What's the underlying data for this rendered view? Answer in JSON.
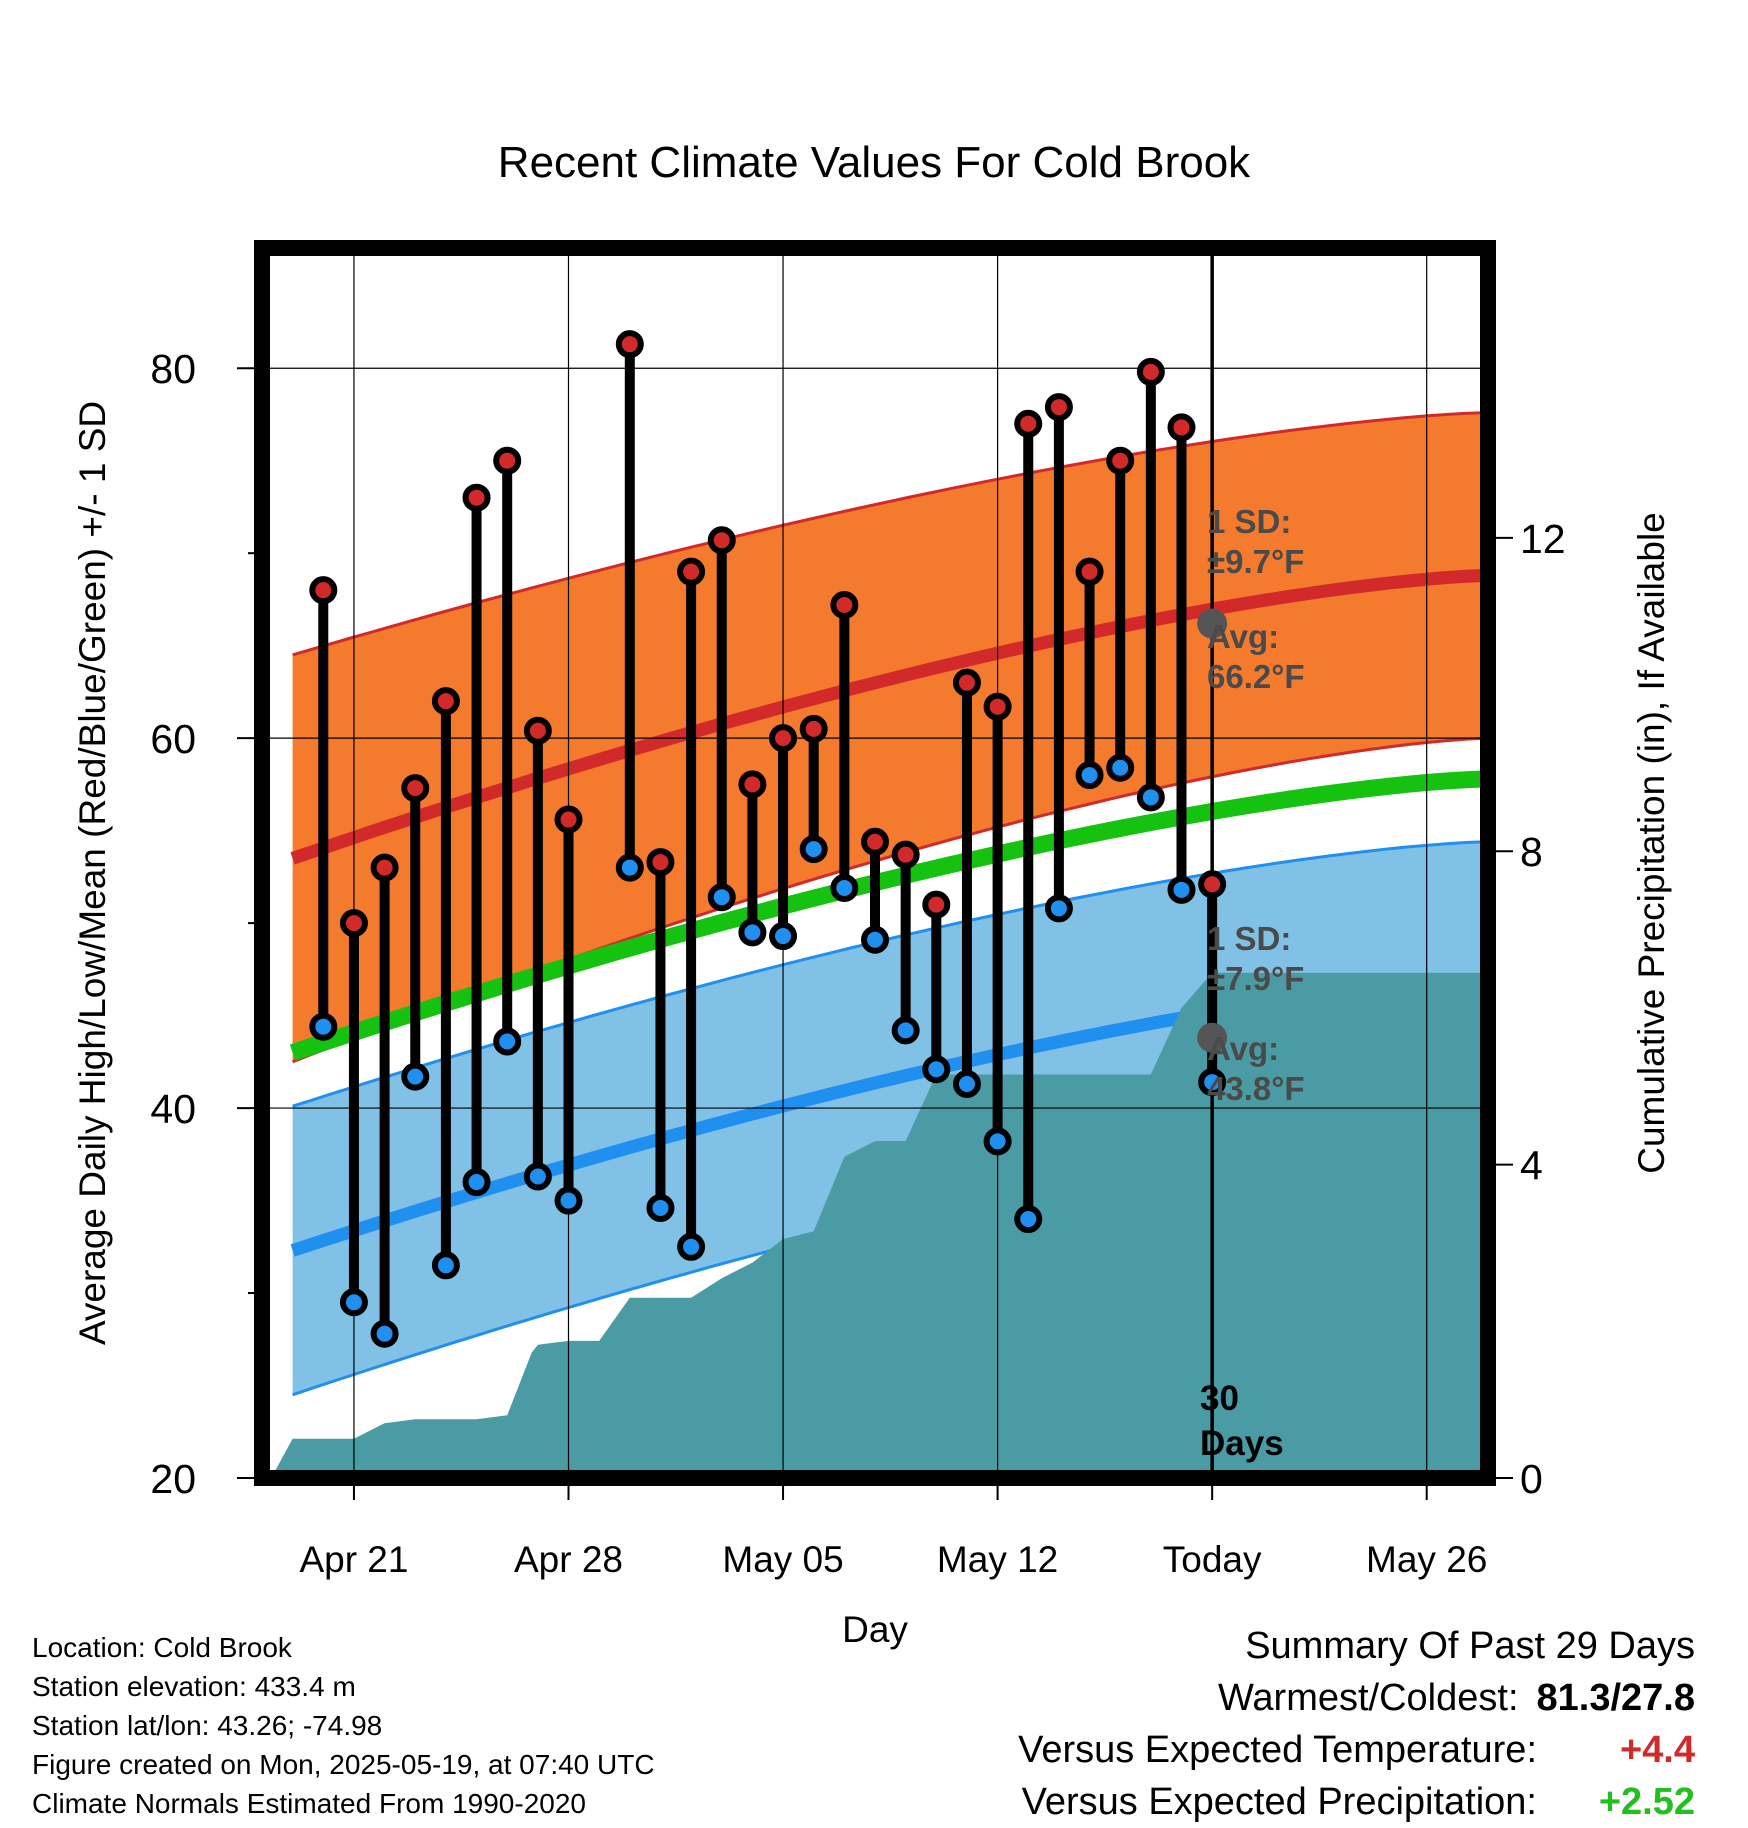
{
  "title": "Recent Climate Values For Cold Brook",
  "axes": {
    "xlabel": "Day",
    "ylabel_left": "Average Daily High/Low/Mean (Red/Blue/Green) +/- 1 SD",
    "ylabel_right": "Cumulative Precipitation (in), If Available"
  },
  "annotations": {
    "high_sd": [
      "1 SD:",
      "±9.7°F"
    ],
    "high_avg": [
      "Avg:",
      "66.2°F"
    ],
    "low_sd": [
      "1 SD:",
      "±7.9°F"
    ],
    "low_avg": [
      "Avg:",
      "43.8°F"
    ],
    "days": [
      "30",
      "Days"
    ]
  },
  "footer": {
    "location": "Location: Cold Brook",
    "elevation": "Station elevation: 433.4 m",
    "latlon": "Station lat/lon: 43.26; -74.98",
    "created": "Figure created on Mon, 2025-05-19, at 07:40 UTC",
    "normals": "Climate Normals Estimated From 1990-2020"
  },
  "summary": {
    "heading": "Summary Of Past 29 Days",
    "warmcold_label": "Warmest/Coldest:",
    "warmcold_value": "81.3/27.8",
    "temp_label": "Versus Expected Temperature:",
    "temp_value": "+4.4",
    "prcp_label": "Versus Expected Precipitation:",
    "prcp_value": "+2.52"
  },
  "colors": {
    "high_band": "#f47a2e",
    "high_line": "#d22a2a",
    "low_band": "#82c1e6",
    "low_line": "#1f8ff0",
    "mean_line": "#15c20f",
    "precip": "#4a9ba3",
    "high_dot": "#d22a2a",
    "low_dot": "#1f8ff0",
    "today_marker": "#555555"
  },
  "chart_data": {
    "type": "line",
    "x_range_days": [
      -31,
      9
    ],
    "xticks": [
      {
        "day": -28,
        "label": "Apr 21"
      },
      {
        "day": -21,
        "label": "Apr 28"
      },
      {
        "day": -14,
        "label": "May 05"
      },
      {
        "day": -7,
        "label": "May 12"
      },
      {
        "day": 0,
        "label": "Today"
      },
      {
        "day": 7,
        "label": "May 26"
      }
    ],
    "ylim_temp": [
      20,
      86.5
    ],
    "yticks_temp": [
      20,
      40,
      60,
      80
    ],
    "ylim_precip": [
      0,
      15.7
    ],
    "yticks_precip": [
      0,
      4,
      8,
      12
    ],
    "normals": {
      "x": [
        -30,
        9
      ],
      "high_mean": [
        53.5,
        68.8
      ],
      "high_sd": [
        11.0,
        8.8
      ],
      "mean": [
        43.0,
        57.8
      ],
      "low_mean": [
        32.3,
        46.9
      ],
      "low_sd": [
        7.8,
        7.5
      ]
    },
    "today_high_avg": 66.2,
    "today_low_avg": 43.8,
    "observations": [
      {
        "day": -29,
        "high": 68.0,
        "low": 44.4
      },
      {
        "day": -28,
        "high": 50.0,
        "low": 29.5
      },
      {
        "day": -27,
        "high": 53.0,
        "low": 27.8
      },
      {
        "day": -26,
        "high": 57.3,
        "low": 41.7
      },
      {
        "day": -25,
        "high": 62.0,
        "low": 31.5
      },
      {
        "day": -24,
        "high": 73.0,
        "low": 36.0
      },
      {
        "day": -23,
        "high": 75.0,
        "low": 43.6
      },
      {
        "day": -22,
        "high": 60.4,
        "low": 36.3
      },
      {
        "day": -21,
        "high": 55.6,
        "low": 35.0
      },
      {
        "day": -19,
        "high": 81.3,
        "low": 53.0
      },
      {
        "day": -18,
        "high": 53.3,
        "low": 34.6
      },
      {
        "day": -17,
        "high": 69.0,
        "low": 32.5
      },
      {
        "day": -16,
        "high": 70.7,
        "low": 51.4
      },
      {
        "day": -15,
        "high": 57.5,
        "low": 49.5
      },
      {
        "day": -14,
        "high": 60.0,
        "low": 49.3
      },
      {
        "day": -13,
        "high": 60.5,
        "low": 54.0
      },
      {
        "day": -12,
        "high": 67.2,
        "low": 51.9
      },
      {
        "day": -11,
        "high": 54.4,
        "low": 49.1
      },
      {
        "day": -10,
        "high": 53.7,
        "low": 44.2
      },
      {
        "day": -9,
        "high": 51.0,
        "low": 42.1
      },
      {
        "day": -8,
        "high": 63.0,
        "low": 41.3
      },
      {
        "day": -7,
        "high": 61.7,
        "low": 38.2
      },
      {
        "day": -6,
        "high": 77.0,
        "low": 34.0
      },
      {
        "day": -5,
        "high": 77.9,
        "low": 50.8
      },
      {
        "day": -4,
        "high": 69.0,
        "low": 58.0
      },
      {
        "day": -3,
        "high": 75.0,
        "low": 58.4
      },
      {
        "day": -2,
        "high": 79.8,
        "low": 56.8
      },
      {
        "day": -1,
        "high": 76.8,
        "low": 51.8
      },
      {
        "day": 0,
        "high": 52.1,
        "low": 41.4
      }
    ],
    "precip_cumulative": {
      "x": [
        -30.7,
        -30.0,
        -29.0,
        -28.0,
        -27.0,
        -26.0,
        -25.0,
        -24.0,
        -23.0,
        -22.2,
        -22.0,
        -21.0,
        -20.0,
        -19.0,
        -18.0,
        -17.0,
        -16.0,
        -15.0,
        -14.0,
        -13.0,
        -12.0,
        -11.0,
        -10.0,
        -9.0,
        -8.0,
        -7.0,
        -6.0,
        -5.0,
        -4.0,
        -3.0,
        -2.0,
        -1.0,
        0.0,
        9.0
      ],
      "y": [
        0,
        0.5,
        0.5,
        0.5,
        0.7,
        0.75,
        0.75,
        0.75,
        0.8,
        1.6,
        1.7,
        1.75,
        1.75,
        2.3,
        2.3,
        2.3,
        2.55,
        2.75,
        3.05,
        3.15,
        4.1,
        4.3,
        4.3,
        5.15,
        5.15,
        5.15,
        5.15,
        5.15,
        5.15,
        5.15,
        5.15,
        6.0,
        6.45,
        6.45
      ]
    }
  }
}
